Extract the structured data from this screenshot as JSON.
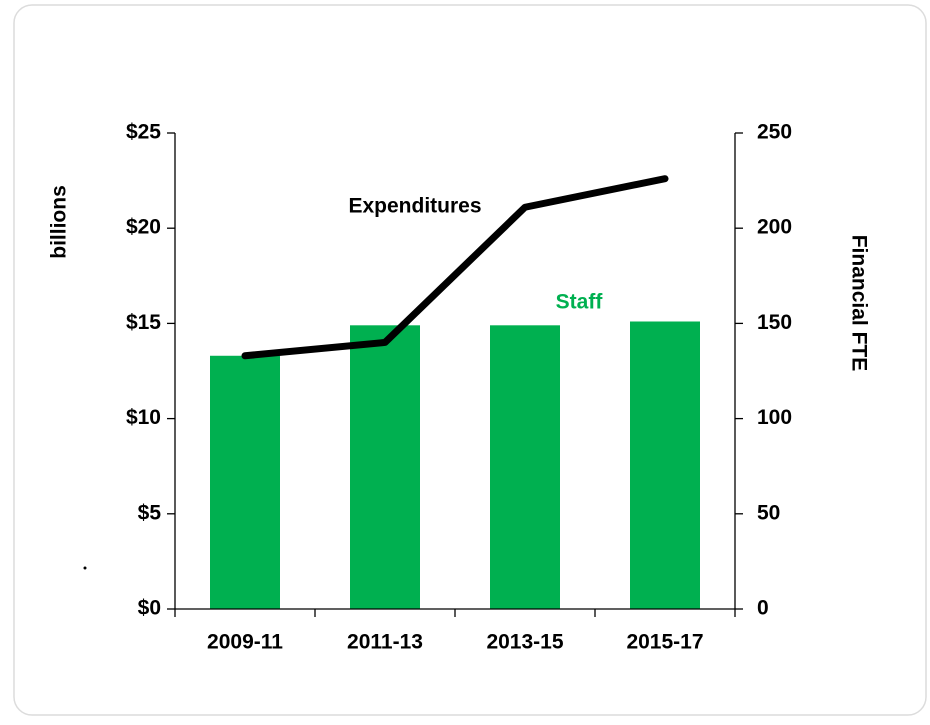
{
  "chart_data": {
    "type": "combo",
    "categories": [
      "2009-11",
      "2011-13",
      "2013-15",
      "2015-17"
    ],
    "series": [
      {
        "name": "Staff",
        "type": "bar",
        "axis": "y2",
        "color": "#00b050",
        "values": [
          133,
          149,
          149,
          151
        ]
      },
      {
        "name": "Expenditures",
        "type": "line",
        "axis": "y",
        "color": "#000000",
        "values": [
          13.3,
          14.0,
          21.1,
          22.6
        ]
      }
    ],
    "ylabel": "billions",
    "y2label": "Financial FTE",
    "ylim": [
      0,
      25
    ],
    "yticks": [
      {
        "value": 0,
        "label": "$0"
      },
      {
        "value": 5,
        "label": "$5"
      },
      {
        "value": 10,
        "label": "$10"
      },
      {
        "value": 15,
        "label": "$15"
      },
      {
        "value": 20,
        "label": "$20"
      },
      {
        "value": 25,
        "label": "$25"
      }
    ],
    "y2lim": [
      0,
      250
    ],
    "y2ticks": [
      0,
      50,
      100,
      150,
      200,
      250
    ]
  }
}
